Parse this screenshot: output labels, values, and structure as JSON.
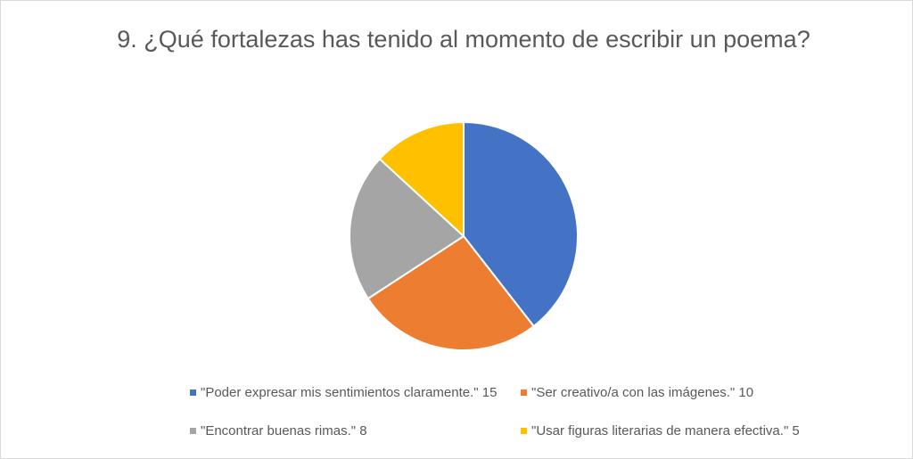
{
  "chart_data": {
    "type": "pie",
    "title": "9. ¿Qué fortalezas has tenido al momento de escribir un poema?",
    "categories": [
      "\"Poder expresar mis sentimientos claramente.\" 15",
      "\"Ser creativo/a con las imágenes.\" 10",
      "\"Encontrar buenas rimas.\" 8",
      "\"Usar figuras literarias de manera efectiva.\" 5"
    ],
    "values": [
      15,
      10,
      8,
      5
    ],
    "colors": [
      "#4472c4",
      "#ed7d31",
      "#a5a5a5",
      "#ffc000"
    ],
    "legend": "bottom"
  }
}
